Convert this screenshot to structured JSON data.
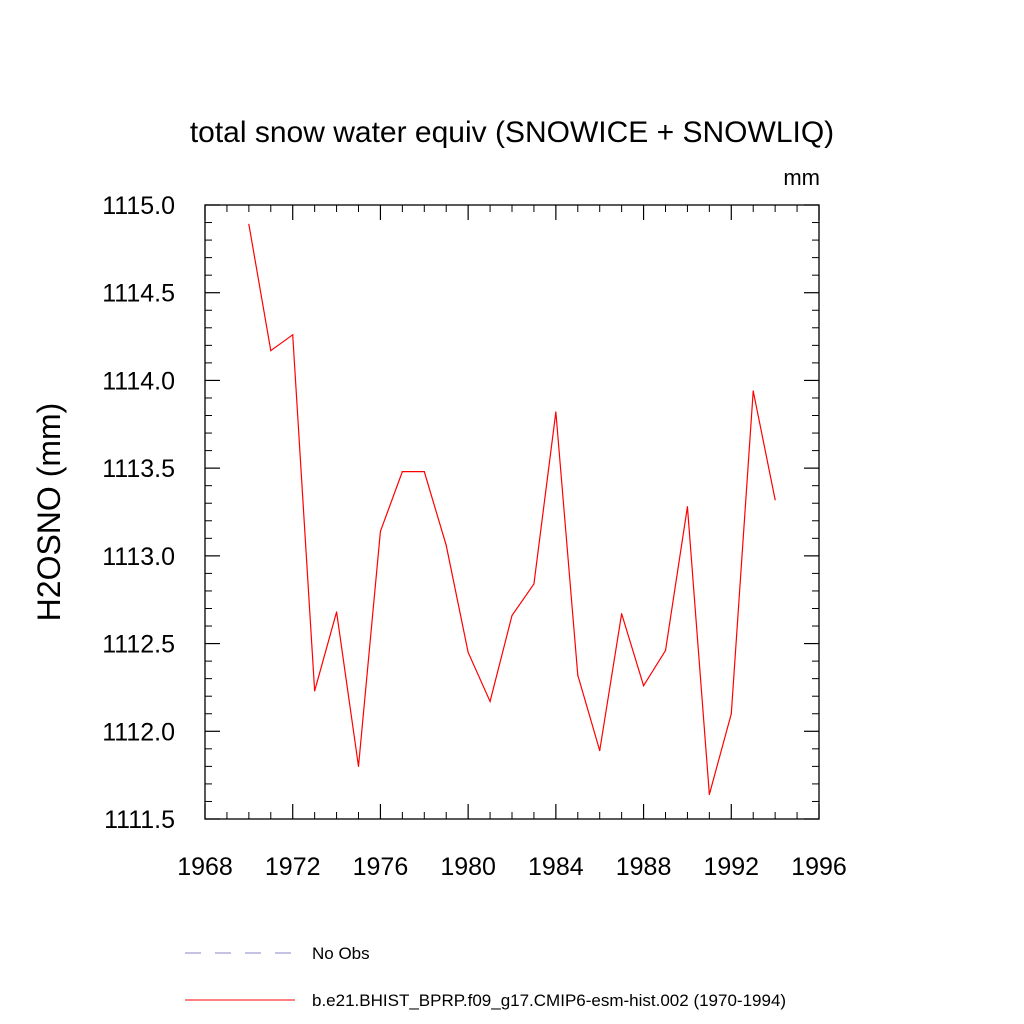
{
  "chart_data": {
    "type": "line",
    "title": "total snow water equiv (SNOWICE + SNOWLIQ)",
    "units": "mm",
    "ylabel": "H2OSNO  (mm)",
    "xlabel": "",
    "xlim": [
      1968,
      1996
    ],
    "ylim": [
      1111.5,
      1115.0
    ],
    "x_ticks": [
      "1968",
      "1972",
      "1976",
      "1980",
      "1984",
      "1988",
      "1992",
      "1996"
    ],
    "y_ticks": [
      "1111.5",
      "1112.0",
      "1112.5",
      "1113.0",
      "1113.5",
      "1114.0",
      "1114.5",
      "1115.0"
    ],
    "grid": false,
    "series": [
      {
        "name": "b.e21.BHIST_BPRP.f09_g17.CMIP6-esm-hist.002 (1970-1994)",
        "color": "#ff0000",
        "style": "solid",
        "x": [
          1970,
          1971,
          1972,
          1973,
          1974,
          1975,
          1976,
          1977,
          1978,
          1979,
          1980,
          1981,
          1982,
          1983,
          1984,
          1985,
          1986,
          1987,
          1988,
          1989,
          1990,
          1991,
          1992,
          1993,
          1994
        ],
        "values": [
          1114.89,
          1114.17,
          1114.26,
          1112.23,
          1112.68,
          1111.8,
          1113.14,
          1113.48,
          1113.48,
          1113.06,
          1112.45,
          1112.17,
          1112.66,
          1112.84,
          1113.82,
          1112.32,
          1111.89,
          1112.67,
          1112.26,
          1112.46,
          1113.28,
          1111.64,
          1112.1,
          1113.94,
          1113.32
        ]
      }
    ],
    "legend": [
      {
        "label": "No Obs",
        "color": "#8a87c8",
        "style": "dashed"
      },
      {
        "label": "b.e21.BHIST_BPRP.f09_g17.CMIP6-esm-hist.002 (1970-1994)",
        "color": "#ff0000",
        "style": "solid"
      }
    ]
  }
}
